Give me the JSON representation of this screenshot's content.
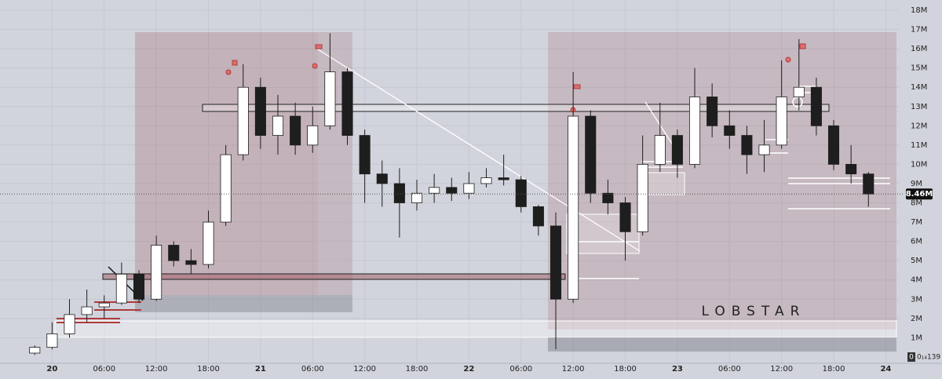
{
  "chart_data": {
    "type": "candlestick",
    "annotation": "LOBSTAR",
    "last_price": {
      "value": 8.46,
      "label": "8.46M"
    },
    "axis_corner_labels": [
      "0",
      "0₁₄139"
    ],
    "x": [
      -2,
      0,
      2,
      4,
      6,
      8,
      10,
      12,
      14,
      16,
      18,
      20,
      22,
      24,
      26,
      28,
      30,
      32,
      34,
      36,
      38,
      40,
      42,
      44,
      46,
      48,
      50,
      52,
      54,
      56,
      58,
      60,
      62,
      64,
      66,
      68,
      70,
      72,
      74,
      76,
      78,
      80,
      82,
      84,
      86,
      88,
      90,
      92,
      94
    ],
    "open": [
      0.2,
      0.5,
      1.2,
      2.2,
      2.6,
      2.8,
      4.3,
      3.0,
      5.8,
      5.0,
      4.8,
      7.0,
      10.5,
      14.0,
      11.5,
      12.5,
      11.0,
      12.0,
      14.8,
      11.5,
      9.5,
      9.0,
      8.0,
      8.5,
      8.8,
      8.5,
      9.0,
      9.3,
      9.2,
      7.8,
      6.8,
      3.0,
      12.5,
      8.5,
      8.0,
      6.5,
      10.0,
      11.5,
      10.0,
      13.5,
      12.0,
      11.5,
      10.5,
      11.0,
      13.5,
      14.0,
      12.0,
      10.0,
      9.5
    ],
    "high": [
      0.6,
      1.8,
      3.0,
      3.5,
      3.2,
      4.9,
      4.5,
      6.3,
      6.0,
      5.6,
      7.6,
      11.0,
      15.2,
      14.5,
      13.6,
      13.2,
      13.0,
      16.8,
      15.0,
      11.8,
      10.2,
      9.8,
      9.2,
      9.5,
      9.3,
      9.6,
      9.8,
      10.5,
      9.4,
      7.9,
      7.5,
      14.8,
      12.8,
      9.2,
      8.3,
      11.5,
      13.2,
      11.8,
      15.0,
      14.2,
      12.8,
      12.0,
      12.3,
      15.4,
      16.5,
      14.5,
      12.3,
      11.0,
      9.6
    ],
    "low": [
      0.1,
      0.4,
      1.0,
      1.8,
      2.0,
      2.7,
      2.8,
      2.9,
      4.7,
      4.3,
      4.6,
      6.8,
      10.2,
      10.8,
      10.5,
      10.5,
      10.6,
      11.8,
      11.0,
      8.0,
      7.8,
      6.2,
      7.6,
      8.0,
      8.1,
      8.2,
      8.8,
      8.9,
      7.5,
      6.3,
      0.4,
      2.8,
      8.0,
      7.4,
      5.0,
      6.3,
      9.6,
      9.3,
      9.8,
      11.4,
      10.8,
      9.5,
      9.6,
      10.8,
      12.8,
      11.5,
      9.7,
      9.0,
      7.8
    ],
    "close": [
      0.5,
      1.2,
      2.2,
      2.6,
      2.8,
      4.3,
      3.0,
      5.8,
      5.0,
      4.8,
      7.0,
      10.5,
      14.0,
      11.5,
      12.5,
      11.0,
      12.0,
      14.8,
      11.5,
      9.5,
      9.0,
      8.0,
      8.5,
      8.8,
      8.5,
      9.0,
      9.3,
      9.2,
      7.8,
      6.8,
      3.0,
      12.5,
      8.5,
      8.0,
      6.5,
      10.0,
      11.5,
      10.0,
      13.5,
      12.0,
      11.5,
      10.5,
      11.0,
      13.5,
      14.0,
      12.0,
      10.0,
      9.5,
      8.46
    ],
    "up_color": "#ffffff",
    "down_color": "#1e1e1e",
    "wick_color": "#1e1e1e",
    "xlim": [
      -6,
      97.5
    ],
    "ylim": [
      -0.33,
      18.53
    ],
    "xticks": [
      {
        "value": 0,
        "label": "20"
      },
      {
        "value": 6,
        "label": "06:00"
      },
      {
        "value": 12,
        "label": "12:00"
      },
      {
        "value": 18,
        "label": "18:00"
      },
      {
        "value": 24,
        "label": "21"
      },
      {
        "value": 30,
        "label": "06:00"
      },
      {
        "value": 36,
        "label": "12:00"
      },
      {
        "value": 42,
        "label": "18:00"
      },
      {
        "value": 48,
        "label": "22"
      },
      {
        "value": 54,
        "label": "06:00"
      },
      {
        "value": 60,
        "label": "12:00"
      },
      {
        "value": 66,
        "label": "18:00"
      },
      {
        "value": 72,
        "label": "23"
      },
      {
        "value": 78,
        "label": "06:00"
      },
      {
        "value": 84,
        "label": "12:00"
      },
      {
        "value": 90,
        "label": "18:00"
      },
      {
        "value": 96,
        "label": "24"
      }
    ],
    "yticks": [
      {
        "value": 1,
        "label": "1M"
      },
      {
        "value": 2,
        "label": "2M"
      },
      {
        "value": 3,
        "label": "3M"
      },
      {
        "value": 4,
        "label": "4M"
      },
      {
        "value": 5,
        "label": "5M"
      },
      {
        "value": 6,
        "label": "6M"
      },
      {
        "value": 7,
        "label": "7M"
      },
      {
        "value": 8,
        "label": "8M"
      },
      {
        "value": 9,
        "label": "9M"
      },
      {
        "value": 10,
        "label": "10M"
      },
      {
        "value": 11,
        "label": "11M"
      },
      {
        "value": 12,
        "label": "12M"
      },
      {
        "value": 13,
        "label": "13M"
      },
      {
        "value": 14,
        "label": "14M"
      },
      {
        "value": 15,
        "label": "15M"
      },
      {
        "value": 16,
        "label": "16M"
      },
      {
        "value": 17,
        "label": "17M"
      },
      {
        "value": 18,
        "label": "18M"
      }
    ],
    "grid": true
  }
}
